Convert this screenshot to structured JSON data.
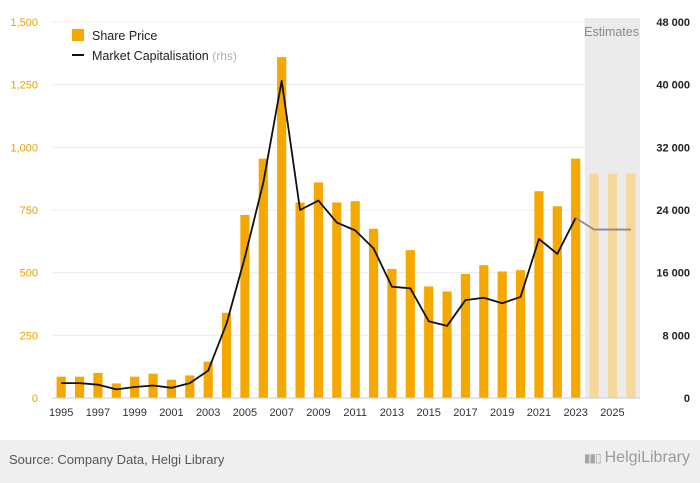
{
  "chart_data": {
    "type": "bar",
    "categories": [
      "1995",
      "1996",
      "1997",
      "1998",
      "1999",
      "2000",
      "2001",
      "2002",
      "2003",
      "2004",
      "2005",
      "2006",
      "2007",
      "2008",
      "2009",
      "2010",
      "2011",
      "2012",
      "2013",
      "2014",
      "2015",
      "2016",
      "2017",
      "2018",
      "2019",
      "2020",
      "2021",
      "2022",
      "2023",
      "2024",
      "2025",
      "2026"
    ],
    "x_tick_labels": [
      "1995",
      "1997",
      "1999",
      "2001",
      "2003",
      "2005",
      "2007",
      "2009",
      "2011",
      "2013",
      "2015",
      "2017",
      "2019",
      "2021",
      "2023",
      "2025"
    ],
    "series": [
      {
        "name": "Share Price",
        "type": "bar",
        "axis": "left",
        "color": "#f5a800",
        "estimate_color": "#f6d89a",
        "values": [
          85,
          85,
          100,
          58,
          85,
          97,
          73,
          90,
          145,
          340,
          730,
          955,
          1360,
          780,
          860,
          780,
          785,
          675,
          515,
          590,
          445,
          425,
          495,
          530,
          505,
          510,
          825,
          765,
          955,
          895,
          895,
          895
        ]
      },
      {
        "name": "Market Capitalisation",
        "type": "line",
        "axis": "right",
        "color": "#111111",
        "estimate_color": "#8a8a8a",
        "values": [
          1900,
          1900,
          1700,
          1100,
          1400,
          1600,
          1300,
          1900,
          3500,
          9500,
          18000,
          27500,
          40500,
          24000,
          25200,
          22400,
          21400,
          19100,
          14200,
          14000,
          9800,
          9200,
          12500,
          12800,
          12100,
          12900,
          20300,
          18400,
          23000,
          21500,
          21500,
          21500
        ]
      }
    ],
    "legend": [
      {
        "label": "Share Price",
        "note": ""
      },
      {
        "label": "Market Capitalisation",
        "note": "(rhs)"
      }
    ],
    "estimates_label": "Estimates",
    "estimates_start": "2024",
    "left_axis": {
      "ylim": [
        0,
        1500
      ],
      "ticks": [
        "0",
        "250",
        "500",
        "750",
        "1,000",
        "1,250",
        "1,500"
      ],
      "tick_values": [
        0,
        250,
        500,
        750,
        1000,
        1250,
        1500
      ],
      "color": "#e8a200"
    },
    "right_axis": {
      "ylim": [
        0,
        48000
      ],
      "ticks": [
        "0",
        "8 000",
        "16 000",
        "24 000",
        "32 000",
        "40 000",
        "48 000"
      ],
      "tick_values": [
        0,
        8000,
        16000,
        24000,
        32000,
        40000,
        48000
      ],
      "color": "#222222"
    },
    "grid": true,
    "legend_placement": "top-left"
  },
  "footer": {
    "source": "Source: Company Data, Helgi Library",
    "logo": "HelgiLibrary"
  }
}
